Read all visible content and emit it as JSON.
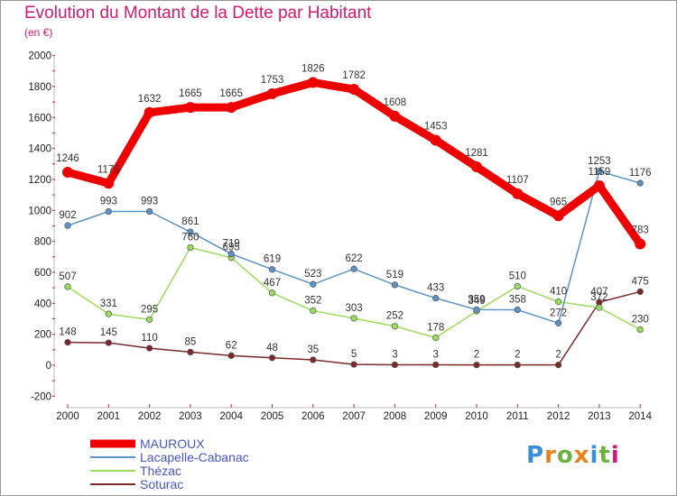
{
  "header": {
    "title": "Evolution du Montant de la Dette par Habitant",
    "unit": "(en €)"
  },
  "brand": {
    "logo_text": "Proxiti",
    "logo_colors": [
      "#3a8fd6",
      "#e8821e",
      "#6cb33f",
      "#e8821e",
      "#3a8fd6",
      "#6cb33f",
      "#d11a75"
    ]
  },
  "colors": {
    "title": "#d11a75",
    "legend_text": "#4a55c9"
  },
  "chart_data": {
    "type": "line",
    "title": "Evolution du Montant de la Dette par Habitant",
    "ylabel": "(en €)",
    "xlabel": "",
    "x": [
      "2000",
      "2001",
      "2002",
      "2003",
      "2004",
      "2005",
      "2006",
      "2007",
      "2008",
      "2009",
      "2010",
      "2011",
      "2012",
      "2013",
      "2014"
    ],
    "yticks": [
      "-200",
      "0",
      "200",
      "400",
      "600",
      "800",
      "1000",
      "1200",
      "1400",
      "1600",
      "1800",
      "2000"
    ],
    "ylim": [
      -200,
      2000
    ],
    "grid": false,
    "legend_position": "bottom-left",
    "series": [
      {
        "name": "MAUROUX",
        "color": "#ee0000",
        "width": 9,
        "values": [
          1246,
          1175,
          1632,
          1665,
          1665,
          1753,
          1826,
          1782,
          1608,
          1453,
          1281,
          1107,
          965,
          1159,
          783
        ]
      },
      {
        "name": "Lacapelle-Cabanac",
        "color": "#5b93c7",
        "width": 1.5,
        "values": [
          902,
          993,
          993,
          861,
          719,
          619,
          523,
          622,
          519,
          433,
          359,
          358,
          272,
          1253,
          1176
        ]
      },
      {
        "name": "Thézac",
        "color": "#9bdc5c",
        "width": 1.5,
        "values": [
          507,
          331,
          295,
          760,
          695,
          467,
          352,
          303,
          252,
          178,
          349,
          510,
          410,
          372,
          230
        ]
      },
      {
        "name": "Soturac",
        "color": "#7a2a2a",
        "width": 1.5,
        "values": [
          148,
          145,
          110,
          85,
          62,
          48,
          35,
          5,
          3,
          3,
          2,
          2,
          2,
          407,
          475
        ]
      }
    ]
  }
}
